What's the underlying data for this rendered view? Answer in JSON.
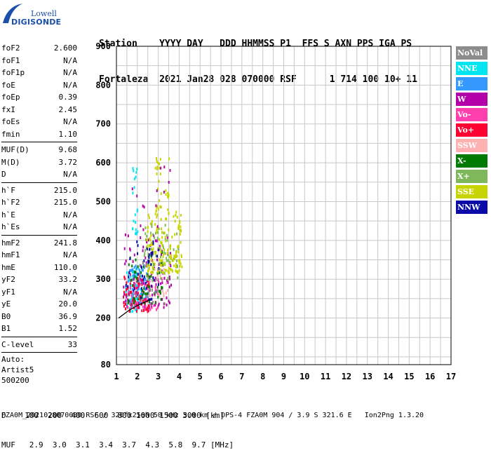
{
  "logo": {
    "small": "Lowell",
    "main": "DIGISONDE"
  },
  "header": {
    "row1": "Station    YYYY DAY   DDD HHMMSS P1  FFS S AXN PPS IGA PS",
    "row2": "Fortaleza  2021 Jan28 028 070000 RSF      1 714 100 10+ 11"
  },
  "params": {
    "group1": [
      {
        "label": "foF2",
        "value": "2.600"
      },
      {
        "label": "foF1",
        "value": "N/A"
      },
      {
        "label": "foF1p",
        "value": "N/A"
      },
      {
        "label": "foE",
        "value": "N/A"
      },
      {
        "label": "foEp",
        "value": "0.39"
      },
      {
        "label": "fxI",
        "value": "2.45"
      },
      {
        "label": "foEs",
        "value": "N/A"
      },
      {
        "label": "fmin",
        "value": "1.10"
      }
    ],
    "group2": [
      {
        "label": "MUF(D)",
        "value": "9.68"
      },
      {
        "label": "M(D)",
        "value": "3.72"
      },
      {
        "label": "D",
        "value": "N/A"
      }
    ],
    "group3": [
      {
        "label": "h`F",
        "value": "215.0"
      },
      {
        "label": "h`F2",
        "value": "215.0"
      },
      {
        "label": "h`E",
        "value": "N/A"
      },
      {
        "label": "h`Es",
        "value": "N/A"
      }
    ],
    "group4": [
      {
        "label": "hmF2",
        "value": "241.8"
      },
      {
        "label": "hmF1",
        "value": "N/A"
      },
      {
        "label": "hmE",
        "value": "110.0"
      },
      {
        "label": "yF2",
        "value": "33.2"
      },
      {
        "label": "yF1",
        "value": "N/A"
      },
      {
        "label": "yE",
        "value": "20.0"
      },
      {
        "label": "B0",
        "value": "36.9"
      },
      {
        "label": "B1",
        "value": "1.52"
      }
    ],
    "group5": [
      {
        "label": "C-level",
        "value": "33"
      }
    ],
    "auto": [
      "Auto:",
      "Artist5",
      "500200"
    ]
  },
  "legend": [
    {
      "label": "NoVal",
      "color": "#8c8c8c"
    },
    {
      "label": "NNE",
      "color": "#00e5f0"
    },
    {
      "label": "E",
      "color": "#3399ff"
    },
    {
      "label": "W",
      "color": "#b300a8"
    },
    {
      "label": "Vo-",
      "color": "#ff3fae"
    },
    {
      "label": "Vo+",
      "color": "#ff0033"
    },
    {
      "label": "SSW",
      "color": "#ffb0b0"
    },
    {
      "label": "X-",
      "color": "#007a00"
    },
    {
      "label": "X+",
      "color": "#7fb85a"
    },
    {
      "label": "SSE",
      "color": "#c8d400"
    },
    {
      "label": "NNW",
      "color": "#0a0aa8"
    }
  ],
  "bottom": {
    "row1": "D    100  200  400  600  800 1000 1500 3000 [km]",
    "row2": "MUF   2.9  3.0  3.1  3.4  3.7  4.3  5.8  9.7 [MHz]"
  },
  "footer": "FZA0M_2021028070000.RSF / 320fx256h 50 kHz 5.0 km / DPS-4 FZA0M 904 / 3.9 S 321.6 E   Ion2Png 1.3.20",
  "chart_data": {
    "type": "scatter",
    "xlim": [
      1,
      17
    ],
    "ylim": [
      80,
      900
    ],
    "x_ticks": [
      1,
      2,
      3,
      4,
      5,
      6,
      7,
      8,
      9,
      10,
      11,
      12,
      13,
      14,
      15,
      16,
      17
    ],
    "y_ticks": [
      80,
      200,
      300,
      400,
      500,
      600,
      700,
      800,
      900
    ],
    "grid": true,
    "legend_position": "right",
    "profile": [
      [
        1.1,
        200
      ],
      [
        1.6,
        220
      ],
      [
        2.0,
        232
      ],
      [
        2.4,
        242
      ],
      [
        2.6,
        248
      ]
    ],
    "clusters": [
      {
        "series": "NNE",
        "x": [
          1.4,
          2.2
        ],
        "y": [
          220,
          330
        ],
        "n": 70
      },
      {
        "series": "E",
        "x": [
          1.5,
          2.6
        ],
        "y": [
          240,
          340
        ],
        "n": 70
      },
      {
        "series": "W",
        "x": [
          1.3,
          3.6
        ],
        "y": [
          230,
          420
        ],
        "n": 110
      },
      {
        "series": "Vo-",
        "x": [
          1.4,
          3.0
        ],
        "y": [
          225,
          300
        ],
        "n": 60
      },
      {
        "series": "Vo+",
        "x": [
          1.3,
          2.6
        ],
        "y": [
          220,
          320
        ],
        "n": 70
      },
      {
        "series": "SSW",
        "x": [
          2.5,
          3.5
        ],
        "y": [
          260,
          340
        ],
        "n": 25
      },
      {
        "series": "X-",
        "x": [
          1.5,
          3.2
        ],
        "y": [
          240,
          380
        ],
        "n": 60
      },
      {
        "series": "X+",
        "x": [
          2.3,
          4.0
        ],
        "y": [
          300,
          450
        ],
        "n": 70
      },
      {
        "series": "SSE",
        "x": [
          2.4,
          4.1
        ],
        "y": [
          320,
          480
        ],
        "n": 150
      },
      {
        "series": "NNW",
        "x": [
          1.4,
          3.0
        ],
        "y": [
          250,
          420
        ],
        "n": 45
      },
      {
        "series": "NoVal",
        "x": [
          1.6,
          3.3
        ],
        "y": [
          240,
          360
        ],
        "n": 20
      },
      {
        "series": "SSE",
        "x": [
          2.8,
          3.5
        ],
        "y": [
          480,
          640
        ],
        "n": 30
      },
      {
        "series": "NNE",
        "x": [
          1.7,
          2.0
        ],
        "y": [
          420,
          590
        ],
        "n": 20
      },
      {
        "series": "W",
        "x": [
          1.6,
          3.6
        ],
        "y": [
          430,
          600
        ],
        "n": 14
      }
    ]
  }
}
